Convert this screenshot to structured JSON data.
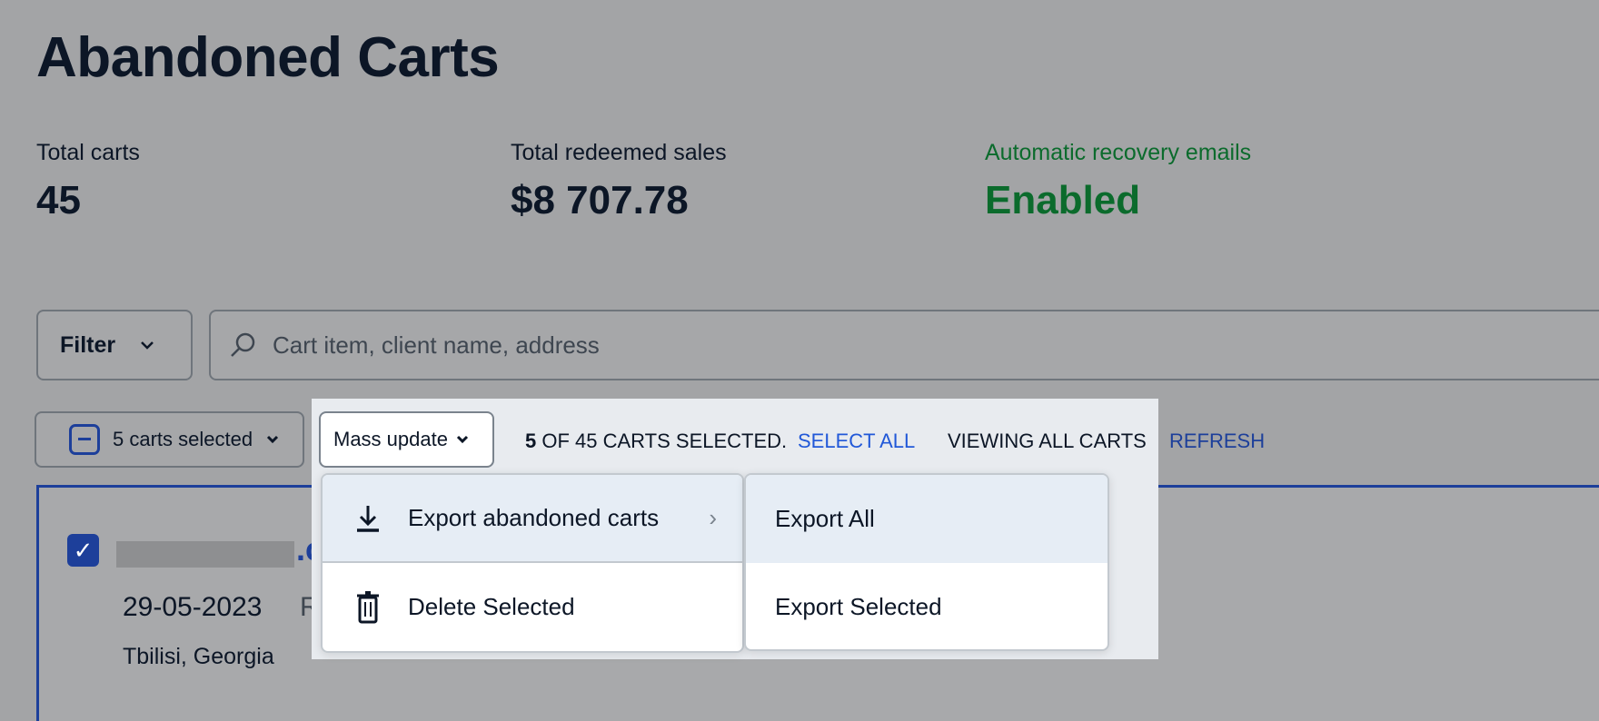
{
  "page": {
    "title": "Abandoned Carts"
  },
  "stats": [
    {
      "label": "Total carts",
      "value": "45"
    },
    {
      "label": "Total redeemed sales",
      "value": "$8 707.78"
    },
    {
      "label": "Automatic recovery emails",
      "value": "Enabled",
      "color": "#0b6b2c"
    }
  ],
  "toolbar": {
    "filter_label": "Filter",
    "search_placeholder": "Cart item, client name, address",
    "selection_label": "5 carts selected",
    "mass_update_label": "Mass update",
    "selected_count": "5",
    "selected_text": "OF 45 CARTS SELECTED.",
    "select_all": "SELECT ALL",
    "viewing": "VIEWING ALL CARTS",
    "refresh": "REFRESH"
  },
  "mass_menu": {
    "items": [
      {
        "label": "Export abandoned carts",
        "icon": "download-icon",
        "has_submenu": true
      },
      {
        "label": "Delete Selected",
        "icon": "trash-icon"
      }
    ],
    "submenu": [
      "Export All",
      "Export Selected"
    ]
  },
  "cart": {
    "checked": true,
    "email_suffix": ".c",
    "date": "29-05-2023",
    "next_text_fragment": "R",
    "location": "Tbilisi, Georgia"
  },
  "colors": {
    "accent": "#2158d8",
    "success": "#0b6b2c"
  }
}
